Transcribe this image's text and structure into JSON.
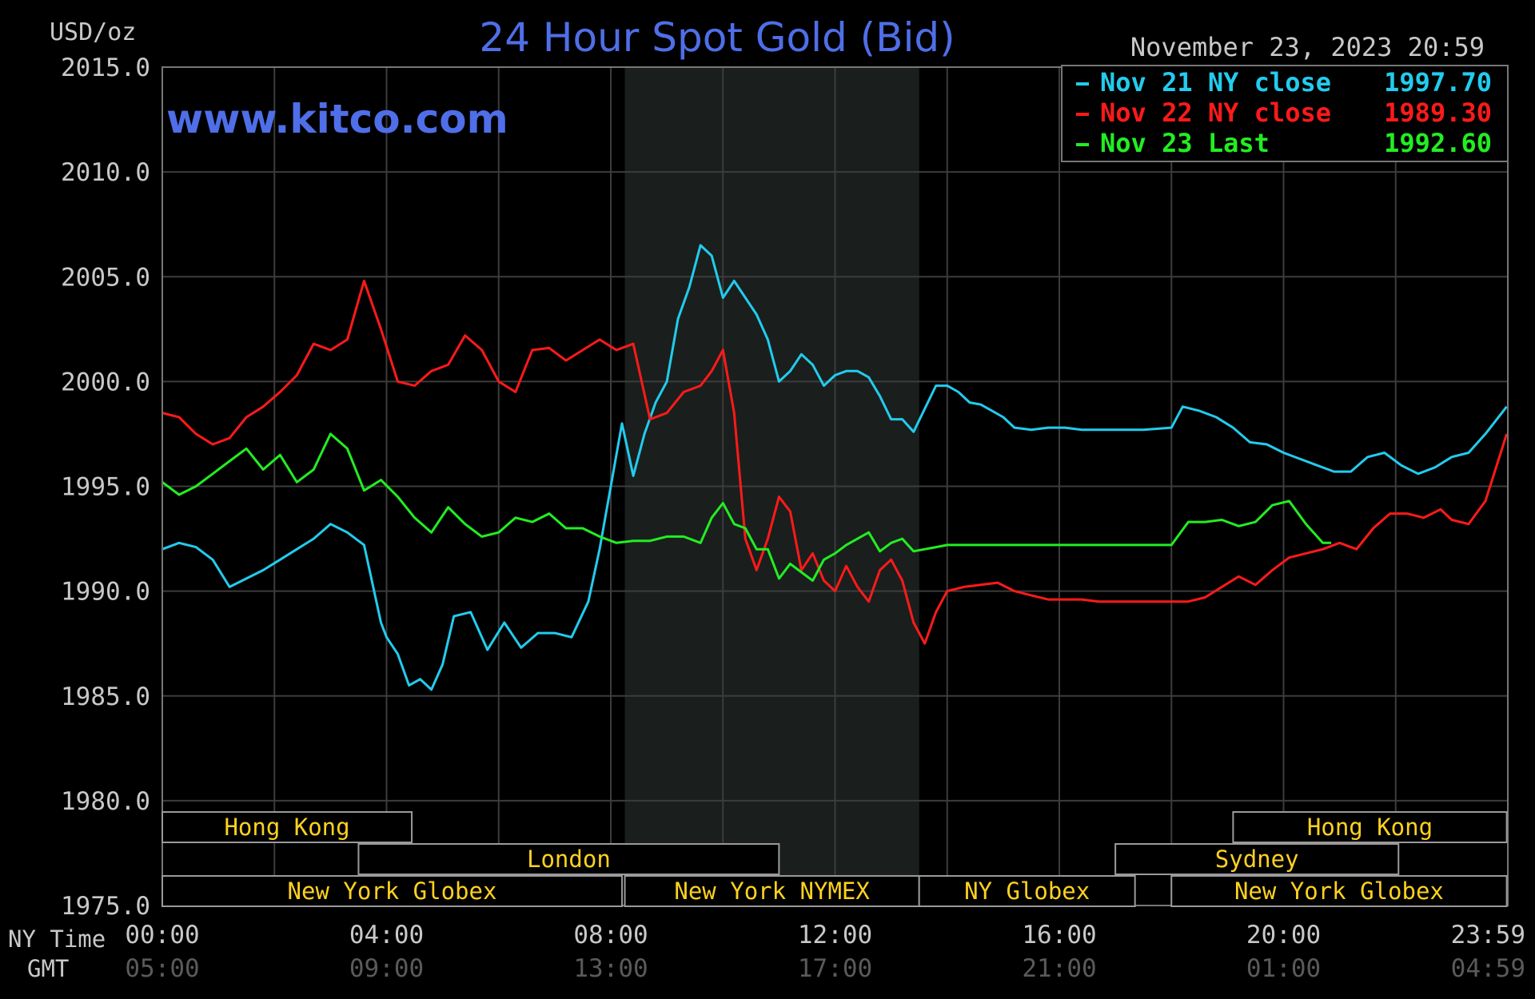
{
  "chart_data": {
    "type": "line",
    "title": "24 Hour Spot Gold (Bid)",
    "watermark": "www.kitco.com",
    "unit_label": "USD/oz",
    "timestamp": "November 23, 2023 20:59",
    "ylim": [
      1975.0,
      2015.0
    ],
    "y_ticks": [
      "2015.0",
      "2010.0",
      "2005.0",
      "2000.0",
      "1995.0",
      "1990.0",
      "1985.0",
      "1980.0",
      "1975.0"
    ],
    "x_range_hours": [
      0,
      24
    ],
    "x_ticks": [
      {
        "ny": "00:00",
        "gmt": "05:00"
      },
      {
        "ny": "04:00",
        "gmt": "09:00"
      },
      {
        "ny": "08:00",
        "gmt": "13:00"
      },
      {
        "ny": "12:00",
        "gmt": "17:00"
      },
      {
        "ny": "16:00",
        "gmt": "21:00"
      },
      {
        "ny": "20:00",
        "gmt": "01:00"
      },
      {
        "ny": "23:59",
        "gmt": "04:59"
      }
    ],
    "x_axis_labels": {
      "ny": "NY Time",
      "gmt": "GMT"
    },
    "grid": true,
    "highlight_hours": [
      8.25,
      13.5
    ],
    "legend_position": "top-right",
    "series": [
      {
        "name": "Nov 21 NY close",
        "legend_value": "1997.70",
        "color": "#22ccee",
        "x": [
          0,
          0.3,
          0.6,
          0.9,
          1.2,
          1.5,
          1.8,
          2.1,
          2.4,
          2.7,
          3.0,
          3.3,
          3.6,
          3.9,
          4.0,
          4.2,
          4.4,
          4.6,
          4.8,
          5.0,
          5.2,
          5.5,
          5.8,
          6.1,
          6.4,
          6.7,
          7.0,
          7.3,
          7.6,
          7.8,
          8.0,
          8.2,
          8.4,
          8.6,
          8.8,
          9.0,
          9.2,
          9.4,
          9.6,
          9.8,
          10.0,
          10.2,
          10.4,
          10.6,
          10.8,
          11.0,
          11.2,
          11.4,
          11.6,
          11.8,
          12.0,
          12.2,
          12.4,
          12.6,
          12.8,
          13.0,
          13.2,
          13.4,
          13.6,
          13.8,
          14.0,
          14.2,
          14.4,
          14.6,
          14.8,
          15.0,
          15.2,
          15.5,
          15.8,
          16.1,
          16.4,
          16.7,
          17.0,
          17.5,
          18.0,
          18.2,
          18.5,
          18.8,
          19.1,
          19.4,
          19.7,
          20.0,
          20.3,
          20.6,
          20.9,
          21.2,
          21.5,
          21.8,
          22.1,
          22.4,
          22.7,
          23.0,
          23.3,
          23.6,
          23.98
        ],
        "y": [
          1992.0,
          1992.3,
          1992.1,
          1991.5,
          1990.2,
          1990.6,
          1991.0,
          1991.5,
          1992.0,
          1992.5,
          1993.2,
          1992.8,
          1992.2,
          1988.5,
          1987.8,
          1987.0,
          1985.5,
          1985.8,
          1985.3,
          1986.5,
          1988.8,
          1989.0,
          1987.2,
          1988.5,
          1987.3,
          1988.0,
          1988.0,
          1987.8,
          1989.5,
          1992.0,
          1995.0,
          1998.0,
          1995.5,
          1997.5,
          1999.0,
          2000.0,
          2003.0,
          2004.5,
          2006.5,
          2006.0,
          2004.0,
          2004.8,
          2004.0,
          2003.2,
          2002.0,
          2000.0,
          2000.5,
          2001.3,
          2000.8,
          1999.8,
          2000.3,
          2000.5,
          2000.5,
          2000.2,
          1999.3,
          1998.2,
          1998.2,
          1997.6,
          1998.7,
          1999.8,
          1999.8,
          1999.5,
          1999.0,
          1998.9,
          1998.6,
          1998.3,
          1997.8,
          1997.7,
          1997.8,
          1997.8,
          1997.7,
          1997.7,
          1997.7,
          1997.7,
          1997.8,
          1998.8,
          1998.6,
          1998.3,
          1997.8,
          1997.1,
          1997.0,
          1996.6,
          1996.3,
          1996.0,
          1995.7,
          1995.7,
          1996.4,
          1996.6,
          1996.0,
          1995.6,
          1995.9,
          1996.4,
          1996.6,
          1997.5,
          1998.8
        ]
      },
      {
        "name": "Nov 22 NY close",
        "legend_value": "1989.30",
        "color": "#ff1a1a",
        "x": [
          0,
          0.3,
          0.6,
          0.9,
          1.2,
          1.5,
          1.8,
          2.1,
          2.4,
          2.7,
          3.0,
          3.3,
          3.6,
          3.9,
          4.2,
          4.5,
          4.8,
          5.1,
          5.4,
          5.7,
          6.0,
          6.3,
          6.6,
          6.9,
          7.2,
          7.5,
          7.8,
          8.1,
          8.4,
          8.7,
          9.0,
          9.3,
          9.6,
          9.8,
          10.0,
          10.2,
          10.4,
          10.6,
          10.8,
          11.0,
          11.2,
          11.4,
          11.6,
          11.8,
          12.0,
          12.2,
          12.4,
          12.6,
          12.8,
          13.0,
          13.2,
          13.4,
          13.6,
          13.8,
          14.0,
          14.3,
          14.6,
          14.9,
          15.2,
          15.5,
          15.8,
          16.1,
          16.4,
          16.7,
          17.0,
          17.5,
          18.0,
          18.3,
          18.6,
          18.9,
          19.2,
          19.5,
          19.8,
          20.1,
          20.4,
          20.7,
          21.0,
          21.3,
          21.6,
          21.9,
          22.2,
          22.5,
          22.8,
          23.0,
          23.3,
          23.6,
          23.98
        ],
        "y": [
          1998.5,
          1998.3,
          1997.5,
          1997.0,
          1997.3,
          1998.3,
          1998.8,
          1999.5,
          2000.3,
          2001.8,
          2001.5,
          2002.0,
          2004.8,
          2002.5,
          2000.0,
          1999.8,
          2000.5,
          2000.8,
          2002.2,
          2001.5,
          2000.0,
          1999.5,
          2001.5,
          2001.6,
          2001.0,
          2001.5,
          2002.0,
          2001.5,
          2001.8,
          1998.2,
          1998.5,
          1999.5,
          1999.8,
          2000.5,
          2001.5,
          1998.5,
          1992.5,
          1991.0,
          1992.5,
          1994.5,
          1993.8,
          1991.0,
          1991.8,
          1990.5,
          1990.0,
          1991.2,
          1990.2,
          1989.5,
          1991.0,
          1991.5,
          1990.5,
          1988.5,
          1987.5,
          1989.0,
          1990.0,
          1990.2,
          1990.3,
          1990.4,
          1990.0,
          1989.8,
          1989.6,
          1989.6,
          1989.6,
          1989.5,
          1989.5,
          1989.5,
          1989.5,
          1989.5,
          1989.7,
          1990.2,
          1990.7,
          1990.3,
          1991.0,
          1991.6,
          1991.8,
          1992.0,
          1992.3,
          1992.0,
          1993.0,
          1993.7,
          1993.7,
          1993.5,
          1993.9,
          1993.4,
          1993.2,
          1994.3,
          1997.5
        ]
      },
      {
        "name": "Nov 23 Last",
        "legend_value": "1992.60",
        "color": "#22ee22",
        "x": [
          0,
          0.3,
          0.6,
          0.9,
          1.2,
          1.5,
          1.8,
          2.1,
          2.4,
          2.7,
          3.0,
          3.3,
          3.6,
          3.9,
          4.2,
          4.5,
          4.8,
          5.1,
          5.4,
          5.7,
          6.0,
          6.3,
          6.6,
          6.9,
          7.2,
          7.5,
          7.8,
          8.1,
          8.4,
          8.7,
          9.0,
          9.3,
          9.6,
          9.8,
          10.0,
          10.2,
          10.4,
          10.6,
          10.8,
          11.0,
          11.2,
          11.4,
          11.6,
          11.8,
          12.0,
          12.2,
          12.4,
          12.6,
          12.8,
          13.0,
          13.2,
          13.4,
          13.6,
          13.8,
          14.0,
          14.5,
          15.0,
          15.5,
          16.0,
          16.5,
          17.0,
          17.5,
          18.0,
          18.3,
          18.6,
          18.9,
          19.2,
          19.5,
          19.8,
          20.1,
          20.4,
          20.7,
          20.85
        ],
        "y": [
          1995.2,
          1994.6,
          1995.0,
          1995.6,
          1996.2,
          1996.8,
          1995.8,
          1996.5,
          1995.2,
          1995.8,
          1997.5,
          1996.8,
          1994.8,
          1995.3,
          1994.5,
          1993.5,
          1992.8,
          1994.0,
          1993.2,
          1992.6,
          1992.8,
          1993.5,
          1993.3,
          1993.7,
          1993.0,
          1993.0,
          1992.6,
          1992.3,
          1992.4,
          1992.4,
          1992.6,
          1992.6,
          1992.3,
          1993.5,
          1994.2,
          1993.2,
          1993.0,
          1992.0,
          1992.0,
          1990.6,
          1991.3,
          1990.9,
          1990.5,
          1991.5,
          1991.8,
          1992.2,
          1992.5,
          1992.8,
          1991.9,
          1992.3,
          1992.5,
          1991.9,
          1992.0,
          1992.1,
          1992.2,
          1992.2,
          1992.2,
          1992.2,
          1992.2,
          1992.2,
          1992.2,
          1992.2,
          1992.2,
          1993.3,
          1993.3,
          1993.4,
          1993.1,
          1993.3,
          1994.1,
          1994.3,
          1993.2,
          1992.3,
          1992.3
        ]
      }
    ],
    "market_sessions": [
      {
        "name": "Hong Kong",
        "start": 0.0,
        "end": 4.45,
        "row": 1
      },
      {
        "name": "Hong Kong",
        "start": 19.1,
        "end": 23.98,
        "row": 1
      },
      {
        "name": "London",
        "start": 3.5,
        "end": 11.0,
        "row": 2
      },
      {
        "name": "Sydney",
        "start": 17.0,
        "end": 22.05,
        "row": 2
      },
      {
        "name": "New York Globex",
        "start": 0.0,
        "end": 8.2,
        "row": 3
      },
      {
        "name": "New York NYMEX",
        "start": 8.25,
        "end": 13.5,
        "row": 3
      },
      {
        "name": "NY Globex",
        "start": 13.5,
        "end": 17.35,
        "row": 3
      },
      {
        "name": "New York Globex",
        "start": 18.0,
        "end": 23.98,
        "row": 3
      }
    ]
  }
}
